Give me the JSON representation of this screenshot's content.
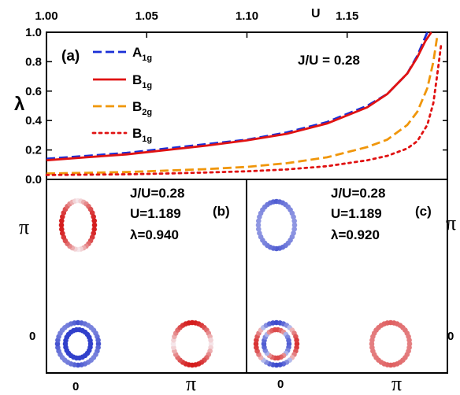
{
  "colors": {
    "A1g": "#1a2fd6",
    "B1g_solid": "#e01212",
    "B2g": "#f0960a",
    "B1g_dotted": "#e01212",
    "blue": "#2636c8",
    "red": "#d41c1c"
  },
  "chart_data": [
    {
      "type": "line",
      "panel_label": "(a)",
      "annotation": "J/U = 0.28",
      "xlabel": "U",
      "ylabel": "λ",
      "xlim": [
        1.0,
        1.2
      ],
      "ylim": [
        0.0,
        1.0
      ],
      "x_ticks": [
        "1.00",
        "1.05",
        "1.10",
        "1.15"
      ],
      "y_ticks": [
        "0.0",
        "0.2",
        "0.4",
        "0.6",
        "0.8",
        "1.0"
      ],
      "legend_position": "top-left",
      "series": [
        {
          "key": "A1g",
          "name": "A",
          "sub": "1g",
          "style": "dashed",
          "x": [
            1.0,
            1.02,
            1.04,
            1.06,
            1.08,
            1.1,
            1.12,
            1.14,
            1.16,
            1.17,
            1.18,
            1.185,
            1.19
          ],
          "values": [
            0.14,
            0.16,
            0.18,
            0.21,
            0.24,
            0.27,
            0.32,
            0.39,
            0.5,
            0.58,
            0.72,
            0.84,
            1.0
          ]
        },
        {
          "key": "B1g_solid",
          "name": "B",
          "sub": "1g",
          "style": "solid",
          "x": [
            1.0,
            1.02,
            1.04,
            1.06,
            1.08,
            1.1,
            1.12,
            1.14,
            1.16,
            1.17,
            1.18,
            1.185,
            1.189,
            1.192
          ],
          "values": [
            0.13,
            0.15,
            0.17,
            0.2,
            0.23,
            0.265,
            0.31,
            0.38,
            0.49,
            0.58,
            0.72,
            0.83,
            0.94,
            1.0
          ]
        },
        {
          "key": "B2g",
          "name": "B",
          "sub": "2g",
          "style": "dashed",
          "x": [
            1.0,
            1.02,
            1.04,
            1.06,
            1.08,
            1.1,
            1.12,
            1.14,
            1.16,
            1.17,
            1.18,
            1.185,
            1.19,
            1.193,
            1.195
          ],
          "values": [
            0.04,
            0.045,
            0.05,
            0.06,
            0.07,
            0.085,
            0.11,
            0.15,
            0.22,
            0.27,
            0.37,
            0.46,
            0.62,
            0.8,
            0.98
          ]
        },
        {
          "key": "B1g_dotted",
          "name": "B",
          "sub": "1g",
          "style": "dotted",
          "x": [
            1.0,
            1.02,
            1.04,
            1.06,
            1.08,
            1.1,
            1.12,
            1.14,
            1.16,
            1.17,
            1.18,
            1.185,
            1.19,
            1.193,
            1.195,
            1.197
          ],
          "values": [
            0.03,
            0.032,
            0.035,
            0.04,
            0.047,
            0.055,
            0.068,
            0.09,
            0.13,
            0.16,
            0.21,
            0.26,
            0.37,
            0.52,
            0.72,
            0.93
          ]
        }
      ]
    },
    {
      "type": "other",
      "panel_label": "(b)",
      "text_lines": [
        "J/U=0.28",
        "U=1.189",
        "λ=0.940"
      ],
      "x_ticks": [
        "0",
        "π"
      ],
      "y_ticks": [
        "π",
        "0"
      ],
      "y_axis_side": "left",
      "pockets": [
        {
          "id": "b-gamma-outer",
          "at": "0,0",
          "ring": "outer",
          "color": "blue",
          "pattern": "solid"
        },
        {
          "id": "b-gamma-inner",
          "at": "0,0",
          "ring": "inner",
          "color": "blue",
          "pattern": "solid"
        },
        {
          "id": "b-x",
          "at": "π,0",
          "ring": "outer",
          "color": "red",
          "pattern": "fade-left-right"
        },
        {
          "id": "b-y",
          "at": "0,π",
          "ring": "outer",
          "color": "red",
          "pattern": "fade-top-bottom"
        }
      ]
    },
    {
      "type": "other",
      "panel_label": "(c)",
      "text_lines": [
        "J/U=0.28",
        "U=1.189",
        "λ=0.920"
      ],
      "x_ticks": [
        "0",
        "π"
      ],
      "y_ticks": [
        "π",
        "0"
      ],
      "y_axis_side": "right",
      "pockets": [
        {
          "id": "c-gamma-outer",
          "at": "0,0",
          "ring": "outer",
          "color": "mixed",
          "pattern": "lobes"
        },
        {
          "id": "c-gamma-inner",
          "at": "0,0",
          "ring": "inner",
          "color": "mixed",
          "pattern": "lobes"
        },
        {
          "id": "c-x",
          "at": "π,0",
          "ring": "outer",
          "color": "red",
          "pattern": "faint"
        },
        {
          "id": "c-y",
          "at": "0,π",
          "ring": "outer",
          "color": "blue",
          "pattern": "faint"
        }
      ]
    }
  ]
}
